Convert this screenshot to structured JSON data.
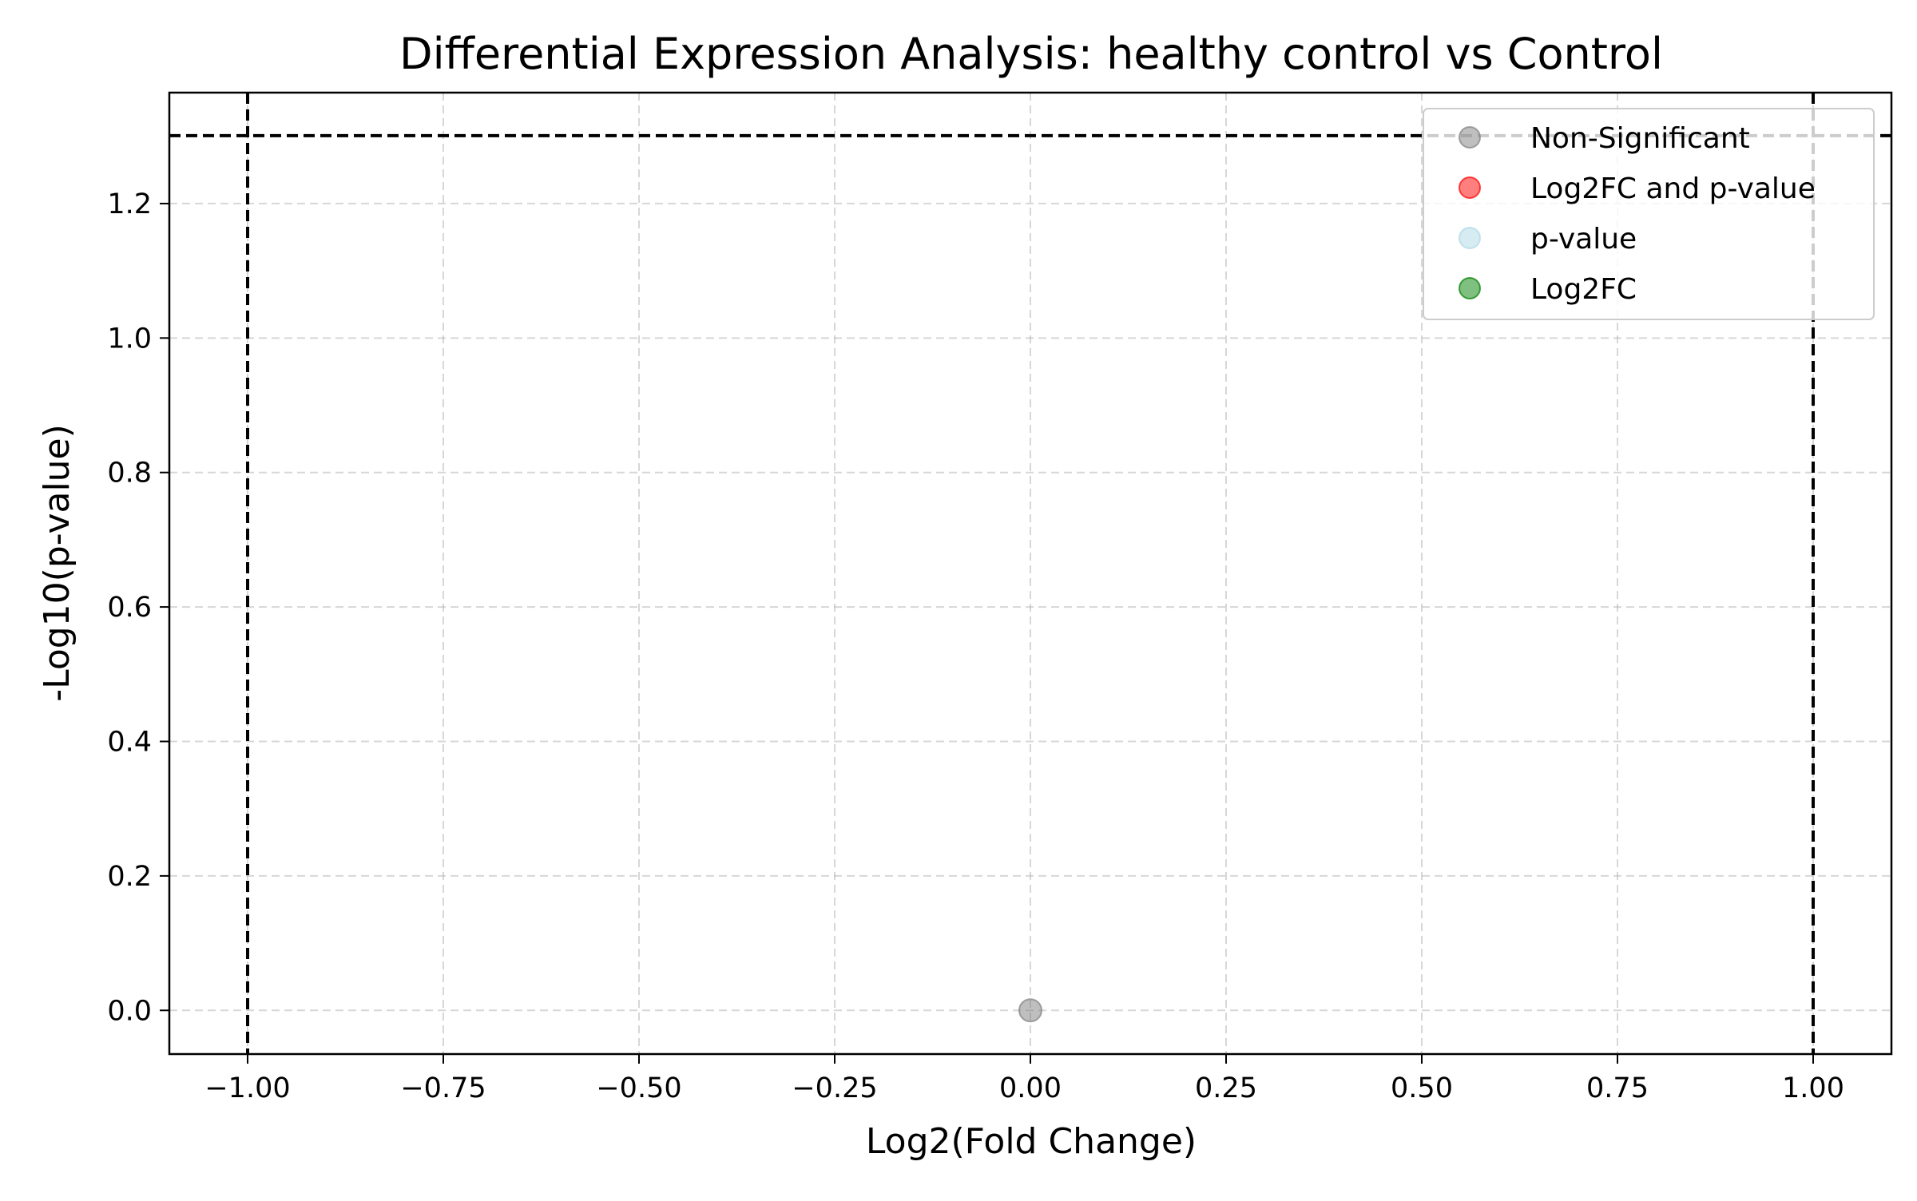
{
  "chart_data": {
    "type": "scatter",
    "title": "Differential Expression Analysis: healthy control vs Control",
    "xlabel": "Log2(Fold Change)",
    "ylabel": "-Log10(p-value)",
    "xlim": [
      -1.1,
      1.1
    ],
    "ylim": [
      -0.065,
      1.365
    ],
    "x_ticks": [
      -1.0,
      -0.75,
      -0.5,
      -0.25,
      0.0,
      0.25,
      0.5,
      0.75,
      1.0
    ],
    "x_tick_labels": [
      "−1.00",
      "−0.75",
      "−0.50",
      "−0.25",
      "0.00",
      "0.25",
      "0.50",
      "0.75",
      "1.00"
    ],
    "y_ticks": [
      0.0,
      0.2,
      0.4,
      0.6,
      0.8,
      1.0,
      1.2
    ],
    "y_tick_labels": [
      "0.0",
      "0.2",
      "0.4",
      "0.6",
      "0.8",
      "1.0",
      "1.2"
    ],
    "grid": true,
    "legend_position": "top-right",
    "thresholds": {
      "log2fc": [
        -1.0,
        1.0
      ],
      "neg_log10_p": 1.301
    },
    "series": [
      {
        "name": "Non-Significant",
        "color": "#808080",
        "points": [
          {
            "x": 0.0,
            "y": 0.0
          }
        ]
      },
      {
        "name": "Log2FC and p-value",
        "color": "#ff0000",
        "points": []
      },
      {
        "name": "p-value",
        "color": "#add8e6",
        "points": []
      },
      {
        "name": "Log2FC",
        "color": "#008000",
        "points": []
      }
    ]
  }
}
